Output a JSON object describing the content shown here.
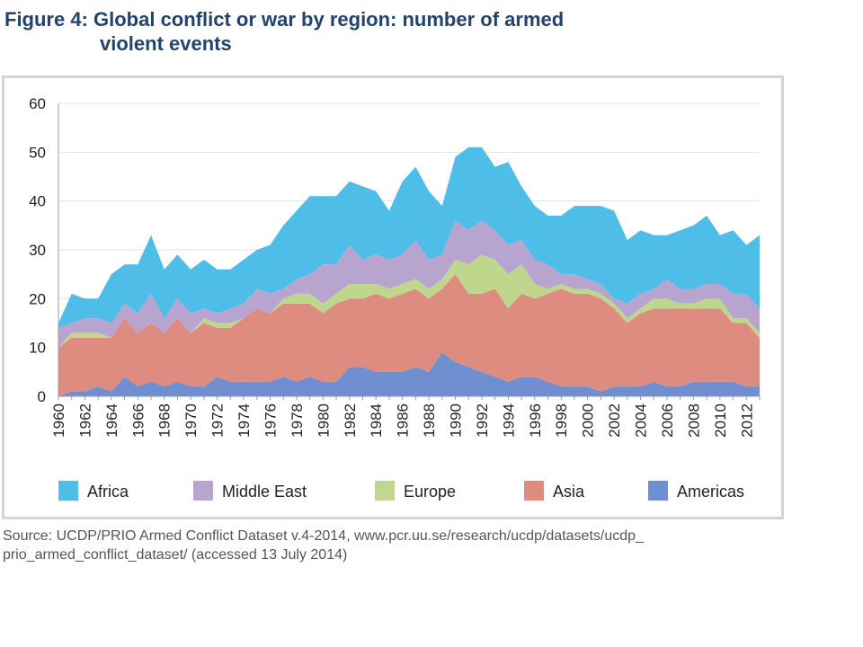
{
  "figure": {
    "title_line1": "Figure 4: Global conflict or war by region: number of armed",
    "title_line2": "violent events",
    "source_line1": "Source: UCDP/PRIO Armed Conflict Dataset v.4-2014, www.pcr.uu.se/research/ucdp/datasets/ucdp_",
    "source_line2": "prio_armed_conflict_dataset/ (accessed 13 July 2014)"
  },
  "chart_data": {
    "type": "area",
    "stacked": true,
    "title": "Global conflict or war by region: number of armed violent events",
    "xlabel": "",
    "ylabel": "",
    "ylim": [
      0,
      60
    ],
    "yticks": [
      0,
      10,
      20,
      30,
      40,
      50,
      60
    ],
    "xticks": [
      1960,
      1962,
      1964,
      1966,
      1968,
      1970,
      1972,
      1974,
      1976,
      1978,
      1980,
      1982,
      1984,
      1986,
      1988,
      1990,
      1992,
      1994,
      1996,
      1998,
      2000,
      2002,
      2004,
      2006,
      2008,
      2010,
      2012
    ],
    "grid": "horizontal",
    "legend_position": "bottom",
    "x": [
      1960,
      1961,
      1962,
      1963,
      1964,
      1965,
      1966,
      1967,
      1968,
      1969,
      1970,
      1971,
      1972,
      1973,
      1974,
      1975,
      1976,
      1977,
      1978,
      1979,
      1980,
      1981,
      1982,
      1983,
      1984,
      1985,
      1986,
      1987,
      1988,
      1989,
      1990,
      1991,
      1992,
      1993,
      1994,
      1995,
      1996,
      1997,
      1998,
      1999,
      2000,
      2001,
      2002,
      2003,
      2004,
      2005,
      2006,
      2007,
      2008,
      2009,
      2010,
      2011,
      2012,
      2013
    ],
    "series": [
      {
        "name": "Americas",
        "color": "#6f8fd1",
        "values": [
          0,
          1,
          1,
          2,
          1,
          4,
          2,
          3,
          2,
          3,
          2,
          2,
          4,
          3,
          3,
          3,
          3,
          4,
          3,
          4,
          3,
          3,
          6,
          6,
          5,
          5,
          5,
          6,
          5,
          9,
          7,
          6,
          5,
          4,
          3,
          4,
          4,
          3,
          2,
          2,
          2,
          1,
          2,
          2,
          2,
          3,
          2,
          2,
          3,
          3,
          3,
          3,
          2,
          2
        ]
      },
      {
        "name": "Asia",
        "color": "#de8c80",
        "values": [
          10,
          11,
          11,
          10,
          11,
          12,
          11,
          12,
          11,
          13,
          11,
          13,
          10,
          11,
          13,
          15,
          14,
          15,
          16,
          15,
          14,
          16,
          14,
          14,
          16,
          15,
          16,
          16,
          15,
          13,
          18,
          15,
          16,
          18,
          15,
          17,
          16,
          18,
          20,
          19,
          19,
          19,
          16,
          13,
          15,
          15,
          16,
          16,
          15,
          15,
          15,
          12,
          13,
          10
        ]
      },
      {
        "name": "Europe",
        "color": "#bfd68d",
        "values": [
          0,
          1,
          1,
          1,
          0,
          0,
          0,
          0,
          0,
          0,
          0,
          1,
          1,
          1,
          0,
          0,
          0,
          1,
          2,
          2,
          2,
          2,
          3,
          3,
          2,
          2,
          2,
          2,
          2,
          2,
          3,
          6,
          8,
          6,
          7,
          6,
          3,
          1,
          1,
          1,
          1,
          1,
          1,
          1,
          1,
          2,
          2,
          1,
          1,
          2,
          2,
          1,
          1,
          1
        ]
      },
      {
        "name": "Middle East",
        "color": "#b8a5cf",
        "values": [
          4,
          2,
          3,
          3,
          3,
          3,
          4,
          6,
          3,
          4,
          4,
          2,
          2,
          3,
          3,
          4,
          4,
          2,
          3,
          4,
          8,
          6,
          8,
          5,
          6,
          6,
          6,
          8,
          6,
          5,
          8,
          7,
          7,
          6,
          6,
          5,
          5,
          5,
          2,
          3,
          2,
          2,
          1,
          3,
          3,
          2,
          4,
          3,
          3,
          3,
          3,
          5,
          5,
          5
        ]
      },
      {
        "name": "Africa",
        "color": "#4ebde8",
        "values": [
          1,
          6,
          4,
          4,
          10,
          8,
          10,
          12,
          10,
          9,
          9,
          10,
          9,
          8,
          9,
          8,
          10,
          13,
          14,
          16,
          14,
          14,
          13,
          15,
          13,
          10,
          15,
          15,
          14,
          10,
          13,
          17,
          15,
          13,
          17,
          11,
          11,
          10,
          12,
          14,
          15,
          16,
          18,
          13,
          13,
          11,
          9,
          12,
          13,
          14,
          10,
          13,
          10,
          15
        ]
      }
    ]
  }
}
